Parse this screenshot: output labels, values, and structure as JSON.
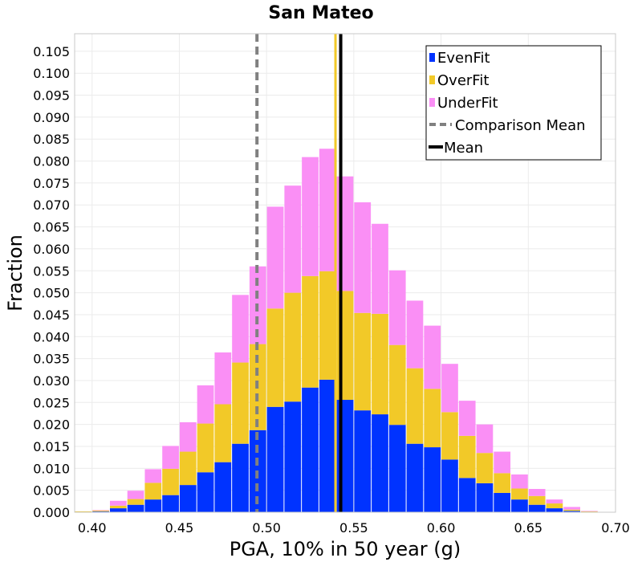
{
  "chart_data": {
    "type": "bar",
    "stacked": true,
    "title": "San Mateo",
    "xlabel": "PGA, 10% in 50 year (g)",
    "ylabel": "Fraction",
    "xlim": [
      0.39,
      0.7
    ],
    "ylim": [
      0,
      0.109
    ],
    "x_ticks": [
      "0.40",
      "0.45",
      "0.50",
      "0.55",
      "0.60",
      "0.65",
      "0.70"
    ],
    "y_ticks": [
      "0.000",
      "0.005",
      "0.010",
      "0.015",
      "0.020",
      "0.025",
      "0.030",
      "0.035",
      "0.040",
      "0.045",
      "0.050",
      "0.055",
      "0.060",
      "0.065",
      "0.070",
      "0.075",
      "0.080",
      "0.085",
      "0.090",
      "0.095",
      "0.100",
      "0.105"
    ],
    "grid": true,
    "legend_position": "top-right",
    "bin_width": 0.01,
    "x": [
      0.395,
      0.405,
      0.415,
      0.425,
      0.435,
      0.445,
      0.455,
      0.465,
      0.475,
      0.485,
      0.495,
      0.505,
      0.515,
      0.525,
      0.535,
      0.545,
      0.555,
      0.565,
      0.575,
      0.585,
      0.595,
      0.605,
      0.615,
      0.625,
      0.635,
      0.645,
      0.655,
      0.665,
      0.675,
      0.685,
      0.695
    ],
    "series": [
      {
        "name": "EvenFit",
        "color": "#0033ff",
        "values": [
          0.0,
          0.0002,
          0.0009,
          0.0017,
          0.0029,
          0.0039,
          0.0062,
          0.0091,
          0.0114,
          0.0156,
          0.0187,
          0.024,
          0.0252,
          0.0284,
          0.0302,
          0.0256,
          0.0232,
          0.0223,
          0.0199,
          0.0156,
          0.0148,
          0.012,
          0.0078,
          0.0066,
          0.0044,
          0.0029,
          0.0017,
          0.0009,
          0.0003,
          0.0001,
          0.0
        ]
      },
      {
        "name": "OverFit",
        "color": "#f2c928",
        "values": [
          0.0002,
          0.0002,
          0.0006,
          0.0013,
          0.0038,
          0.006,
          0.0076,
          0.0111,
          0.0132,
          0.0185,
          0.0196,
          0.0224,
          0.0248,
          0.0254,
          0.0247,
          0.0248,
          0.0222,
          0.0229,
          0.0182,
          0.0172,
          0.0133,
          0.0108,
          0.0096,
          0.0069,
          0.0045,
          0.0025,
          0.002,
          0.0011,
          0.0003,
          0.0001,
          0.0
        ]
      },
      {
        "name": "UnderFit",
        "color": "#fa8ff5",
        "values": [
          0.0,
          0.0001,
          0.0011,
          0.0019,
          0.0031,
          0.0052,
          0.0067,
          0.0087,
          0.0118,
          0.0154,
          0.0177,
          0.0232,
          0.0244,
          0.0271,
          0.0279,
          0.0261,
          0.0252,
          0.0205,
          0.017,
          0.0154,
          0.0144,
          0.011,
          0.008,
          0.0065,
          0.0049,
          0.0032,
          0.0016,
          0.0009,
          0.0006,
          0.0001,
          0.0
        ]
      }
    ],
    "lines": [
      {
        "name": "Comparison Mean",
        "x": 0.4945,
        "color": "#808080",
        "style": "dashed"
      },
      {
        "name": "Mean",
        "x": 0.5425,
        "color": "#000000",
        "style": "solid"
      }
    ],
    "extra_vertical_line": {
      "x": 0.5395,
      "color": "#f2c928"
    }
  }
}
